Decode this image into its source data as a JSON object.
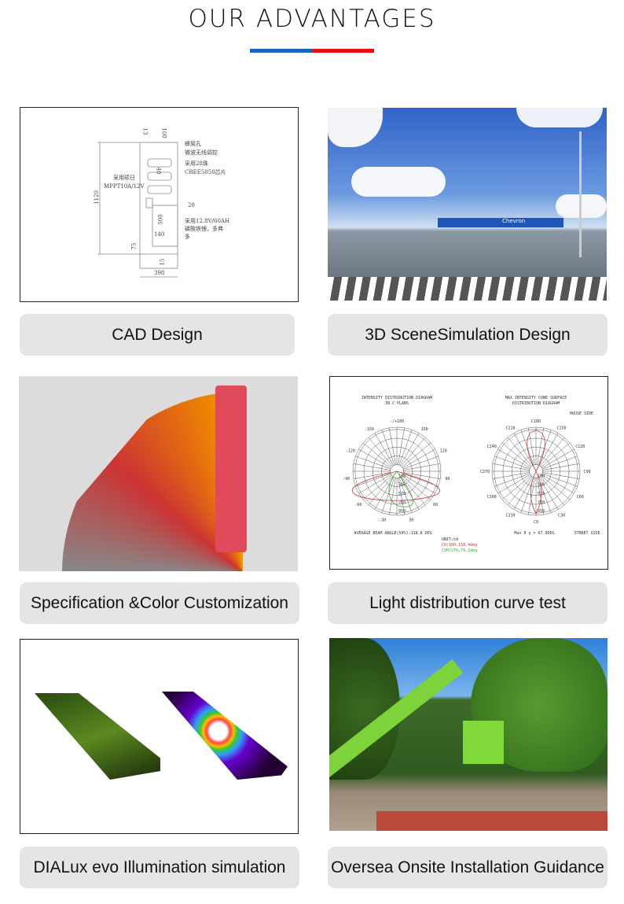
{
  "header": {
    "title": "OUR ADVANTAGES",
    "accent_colors": [
      "#1565c0",
      "#e81010"
    ]
  },
  "cards": [
    {
      "label": "CAD Design",
      "image": "cad-drawing",
      "cad": {
        "dims": [
          "13",
          "100",
          "40",
          "1120",
          "20",
          "500",
          "140",
          "75",
          "15",
          "398"
        ],
        "notes": [
          "蜂窝孔",
          "微波无线调控",
          "采用28珠",
          "CREE5050芯片",
          "采用硕日",
          "MPPT10A/12V",
          "采用12.8V/60AH",
          "磷酸铁锂，多弗",
          "多"
        ]
      }
    },
    {
      "label": "3D SceneSimulation Design",
      "image": "3d-gas-station-scene",
      "sign": "Chevron"
    },
    {
      "label": "Specification &Color Customization",
      "image": "color-fan-deck"
    },
    {
      "label": "Light distribution curve test",
      "image": "polar-diagrams",
      "diagram": {
        "left_title1": "INTENSITY DISTRIBUTION DIAGRAM",
        "left_title2": "IN C PLANS",
        "left_footer": "AVERAGE BEAM ANGLE(50%):118.8 DEG",
        "unit": "UNIT:cd",
        "legend": [
          "C0/180,158.4deg",
          "C90/270,79.2deg"
        ],
        "right_title1": "MAX INTENSITY CONE SURFACE",
        "right_title2": "DISTRIBUTION DIAGRAM",
        "house_side": "HOUSE SIDE",
        "street_side": "STREET SIDE",
        "max_text": "Max θ γ = 67.0DEG",
        "left_angles": [
          "-/+180",
          "150",
          "120",
          "90",
          "60",
          "30",
          "-30",
          "-60",
          "-90",
          "-120",
          "-150"
        ],
        "right_angles": [
          "C180",
          "C150",
          "C120",
          "C90",
          "C60",
          "C30",
          "C0",
          "C330",
          "C300",
          "C270",
          "C240",
          "C210"
        ],
        "rings": [
          "190",
          "380",
          "570",
          "760",
          "950"
        ]
      }
    },
    {
      "label": "DIALux evo Illumination simulation",
      "image": "dialux-road-renders"
    },
    {
      "label": "Oversea Onsite Installation Guidance",
      "image": "installation-photo"
    }
  ]
}
